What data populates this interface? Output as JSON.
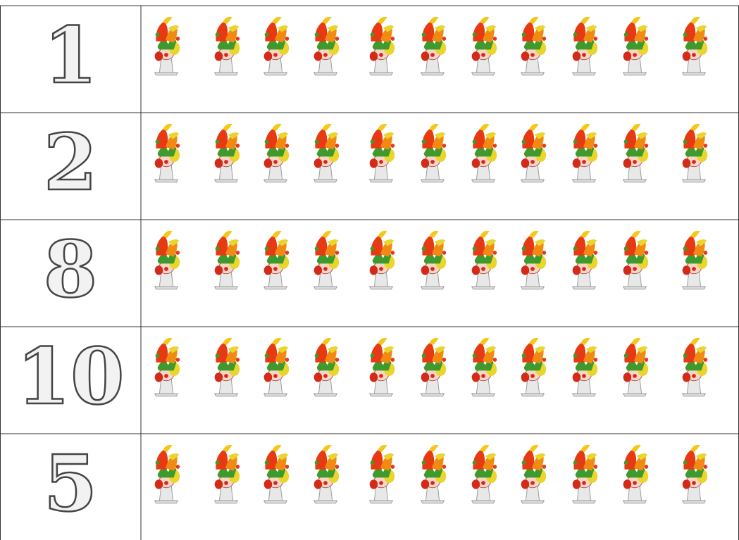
{
  "table": {
    "numbers": [
      "1",
      "2",
      "8",
      "10",
      "5"
    ]
  }
}
